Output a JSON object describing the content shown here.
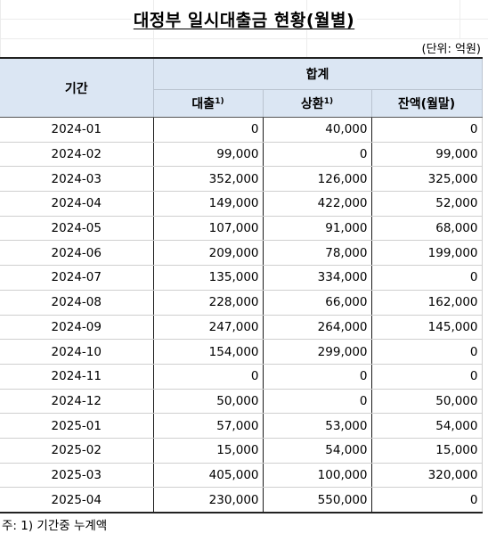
{
  "title": "대정부 일시대출금 현황(월별)",
  "unit": "(단위: 억원)",
  "header": {
    "period": "기간",
    "group": "합계",
    "loan": "대출",
    "repay": "상환",
    "balance": "잔액(월말)",
    "footnote_mark": "1)"
  },
  "rows": [
    {
      "period": "2024-01",
      "loan": "0",
      "repay": "40,000",
      "balance": "0"
    },
    {
      "period": "2024-02",
      "loan": "99,000",
      "repay": "0",
      "balance": "99,000"
    },
    {
      "period": "2024-03",
      "loan": "352,000",
      "repay": "126,000",
      "balance": "325,000"
    },
    {
      "period": "2024-04",
      "loan": "149,000",
      "repay": "422,000",
      "balance": "52,000"
    },
    {
      "period": "2024-05",
      "loan": "107,000",
      "repay": "91,000",
      "balance": "68,000"
    },
    {
      "period": "2024-06",
      "loan": "209,000",
      "repay": "78,000",
      "balance": "199,000"
    },
    {
      "period": "2024-07",
      "loan": "135,000",
      "repay": "334,000",
      "balance": "0"
    },
    {
      "period": "2024-08",
      "loan": "228,000",
      "repay": "66,000",
      "balance": "162,000"
    },
    {
      "period": "2024-09",
      "loan": "247,000",
      "repay": "264,000",
      "balance": "145,000"
    },
    {
      "period": "2024-10",
      "loan": "154,000",
      "repay": "299,000",
      "balance": "0"
    },
    {
      "period": "2024-11",
      "loan": "0",
      "repay": "0",
      "balance": "0"
    },
    {
      "period": "2024-12",
      "loan": "50,000",
      "repay": "0",
      "balance": "50,000"
    },
    {
      "period": "2025-01",
      "loan": "57,000",
      "repay": "53,000",
      "balance": "54,000"
    },
    {
      "period": "2025-02",
      "loan": "15,000",
      "repay": "54,000",
      "balance": "15,000"
    },
    {
      "period": "2025-03",
      "loan": "405,000",
      "repay": "100,000",
      "balance": "320,000"
    },
    {
      "period": "2025-04",
      "loan": "230,000",
      "repay": "550,000",
      "balance": "0"
    }
  ],
  "note": "주: 1) 기간중 누계액"
}
